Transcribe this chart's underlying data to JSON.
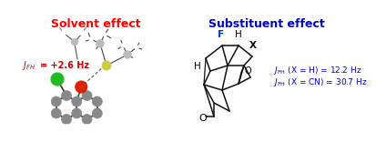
{
  "left_title": "Solvent effect",
  "left_title_color": "#ff0000",
  "left_jfh_text": "= +2.6 Hz",
  "left_jfh_color": "#cc0000",
  "right_title": "Substituent effect",
  "right_title_color": "#0000cc",
  "right_text_color": "#0000cc",
  "right_line1": " (X = H) = 12.2 Hz",
  "right_line2": " (X = CN) = 30.7 Hz",
  "bg_color": "#ffffff",
  "gray": "#888888",
  "dgray": "#555555",
  "lgray": "#bbbbbb",
  "white": "#ffffff",
  "green": "#22bb22",
  "red_atom": "#dd2200",
  "yellow": "#cccc44"
}
